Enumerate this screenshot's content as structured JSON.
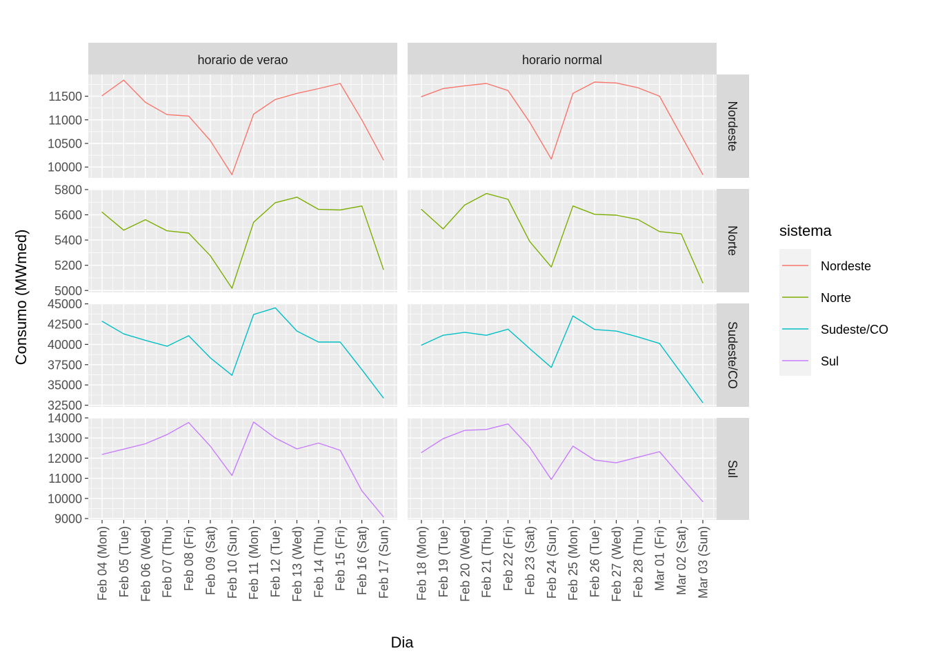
{
  "chart_data": {
    "type": "line",
    "title": "",
    "xlabel": "Dia",
    "ylabel": "Consumo (MWmed)",
    "facet_columns": [
      "horario de verao",
      "horario normal"
    ],
    "facet_rows": [
      "Nordeste",
      "Norte",
      "Sudeste/CO",
      "Sul"
    ],
    "grid": true,
    "legend": {
      "title": "sistema",
      "placement": "right",
      "entries": [
        {
          "label": "Nordeste",
          "color": "#F8766D"
        },
        {
          "label": "Norte",
          "color": "#7CAE00"
        },
        {
          "label": "Sudeste/CO",
          "color": "#00BFC4"
        },
        {
          "label": "Sul",
          "color": "#C77CFF"
        }
      ]
    },
    "x_categories": {
      "horario de verao": [
        "Feb 04 (Mon)",
        "Feb 05 (Tue)",
        "Feb 06 (Wed)",
        "Feb 07 (Thu)",
        "Feb 08 (Fri)",
        "Feb 09 (Sat)",
        "Feb 10 (Sun)",
        "Feb 11 (Mon)",
        "Feb 12 (Tue)",
        "Feb 13 (Wed)",
        "Feb 14 (Thu)",
        "Feb 15 (Fri)",
        "Feb 16 (Sat)",
        "Feb 17 (Sun)"
      ],
      "horario normal": [
        "Feb 18 (Mon)",
        "Feb 19 (Tue)",
        "Feb 20 (Wed)",
        "Feb 21 (Thu)",
        "Feb 22 (Fri)",
        "Feb 23 (Sat)",
        "Feb 24 (Sun)",
        "Feb 25 (Mon)",
        "Feb 26 (Tue)",
        "Feb 27 (Wed)",
        "Feb 28 (Thu)",
        "Mar 01 (Fri)",
        "Mar 02 (Sat)",
        "Mar 03 (Sun)"
      ]
    },
    "y_axes": {
      "Nordeste": {
        "ticks": [
          10000,
          10500,
          11000,
          11500
        ],
        "ylim": [
          9770,
          11960
        ]
      },
      "Norte": {
        "ticks": [
          5000,
          5200,
          5400,
          5600,
          5800
        ],
        "ylim": [
          4985,
          5805
        ]
      },
      "Sudeste/CO": {
        "ticks": [
          32500,
          35000,
          37500,
          40000,
          42500,
          45000
        ],
        "ylim": [
          32300,
          45050
        ]
      },
      "Sul": {
        "ticks": [
          9000,
          10000,
          11000,
          12000,
          13000,
          14000
        ],
        "ylim": [
          8930,
          14000
        ]
      }
    },
    "series": [
      {
        "name": "Nordeste",
        "facet": "horario de verao",
        "values": [
          11510,
          11840,
          11370,
          11110,
          11080,
          10560,
          9840,
          11120,
          11430,
          11560,
          11660,
          11770,
          11000,
          10150
        ]
      },
      {
        "name": "Nordeste",
        "facet": "horario normal",
        "values": [
          11490,
          11660,
          11720,
          11770,
          11620,
          10950,
          10170,
          11560,
          11800,
          11780,
          11680,
          11500,
          10670,
          9840
        ]
      },
      {
        "name": "Norte",
        "facet": "horario de verao",
        "values": [
          5621,
          5478,
          5561,
          5473,
          5455,
          5276,
          5018,
          5541,
          5696,
          5740,
          5643,
          5638,
          5670,
          5166
        ]
      },
      {
        "name": "Norte",
        "facet": "horario normal",
        "values": [
          5643,
          5488,
          5678,
          5769,
          5723,
          5389,
          5186,
          5670,
          5604,
          5597,
          5563,
          5467,
          5449,
          5060
        ]
      },
      {
        "name": "Sudeste/CO",
        "facet": "horario de verao",
        "values": [
          42845,
          41293,
          40490,
          39770,
          41060,
          38340,
          36190,
          43680,
          44510,
          41640,
          40290,
          40290,
          36900,
          33390
        ]
      },
      {
        "name": "Sudeste/CO",
        "facet": "horario normal",
        "values": [
          39910,
          41120,
          41490,
          41120,
          41870,
          39480,
          37160,
          43510,
          41840,
          41640,
          40920,
          40110,
          36470,
          32820
        ]
      },
      {
        "name": "Sul",
        "facet": "horario de verao",
        "values": [
          12183,
          12448,
          12714,
          13172,
          13770,
          12597,
          11138,
          13793,
          13000,
          12459,
          12748,
          12390,
          10379,
          9080
        ]
      },
      {
        "name": "Sul",
        "facet": "horario normal",
        "values": [
          12276,
          12966,
          13379,
          13425,
          13700,
          12540,
          10941,
          12597,
          11907,
          11770,
          12045,
          12321,
          11069,
          9838
        ]
      }
    ]
  }
}
